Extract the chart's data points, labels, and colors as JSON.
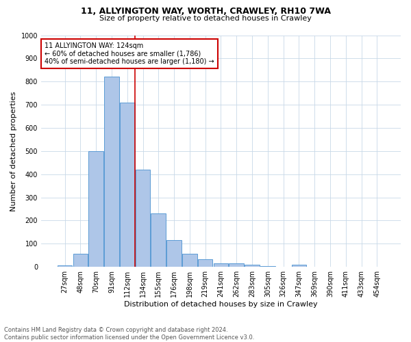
{
  "title1": "11, ALLYINGTON WAY, WORTH, CRAWLEY, RH10 7WA",
  "title2": "Size of property relative to detached houses in Crawley",
  "xlabel": "Distribution of detached houses by size in Crawley",
  "ylabel": "Number of detached properties",
  "bin_labels": [
    "27sqm",
    "48sqm",
    "70sqm",
    "91sqm",
    "112sqm",
    "134sqm",
    "155sqm",
    "176sqm",
    "198sqm",
    "219sqm",
    "241sqm",
    "262sqm",
    "283sqm",
    "305sqm",
    "326sqm",
    "347sqm",
    "369sqm",
    "390sqm",
    "411sqm",
    "433sqm",
    "454sqm"
  ],
  "bin_values": [
    7,
    58,
    500,
    820,
    710,
    420,
    230,
    115,
    57,
    32,
    14,
    14,
    10,
    5,
    0,
    8,
    0,
    0,
    0,
    0,
    0
  ],
  "bar_color": "#aec6e8",
  "bar_edge_color": "#5b9bd5",
  "property_bin_index": 4,
  "vline_color": "#cc0000",
  "annotation_text": "11 ALLYINGTON WAY: 124sqm\n← 60% of detached houses are smaller (1,786)\n40% of semi-detached houses are larger (1,180) →",
  "annotation_box_color": "#ffffff",
  "annotation_border_color": "#cc0000",
  "footnote": "Contains HM Land Registry data © Crown copyright and database right 2024.\nContains public sector information licensed under the Open Government Licence v3.0.",
  "ylim": [
    0,
    1000
  ],
  "yticks": [
    0,
    100,
    200,
    300,
    400,
    500,
    600,
    700,
    800,
    900,
    1000
  ],
  "background_color": "#ffffff",
  "grid_color": "#c8d8e8",
  "title1_fontsize": 9,
  "title2_fontsize": 8,
  "ylabel_fontsize": 8,
  "xlabel_fontsize": 8,
  "tick_fontsize": 7,
  "annotation_fontsize": 7,
  "footnote_fontsize": 6
}
